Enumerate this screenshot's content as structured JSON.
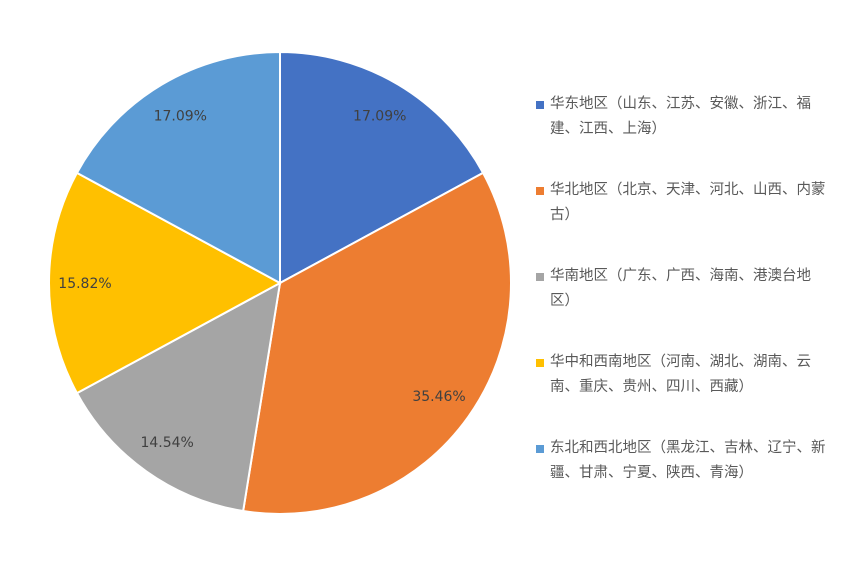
{
  "chart_data": {
    "type": "pie",
    "title": "",
    "categories": [
      "华东地区（山东、江苏、安徽、浙江、福建、江西、上海）",
      "华北地区（北京、天津、河北、山西、内蒙古）",
      "华南地区（广东、广西、海南、港澳台地区）",
      "华中和西南地区（河南、湖北、湖南、云南、重庆、贵州、四川、西藏）",
      "东北和西北地区（黑龙江、吉林、辽宁、新疆、甘肃、宁夏、陕西、青海）"
    ],
    "values": [
      17.09,
      35.46,
      14.54,
      15.82,
      17.09
    ],
    "data_labels": [
      "17.09%",
      "35.46%",
      "14.54%",
      "15.82%",
      "17.09%"
    ],
    "colors": [
      "#4472C4",
      "#ED7D31",
      "#A5A5A5",
      "#FFC000",
      "#5B9BD5"
    ],
    "start_angle": "12 o'clock, clockwise",
    "legend_position": "right"
  }
}
